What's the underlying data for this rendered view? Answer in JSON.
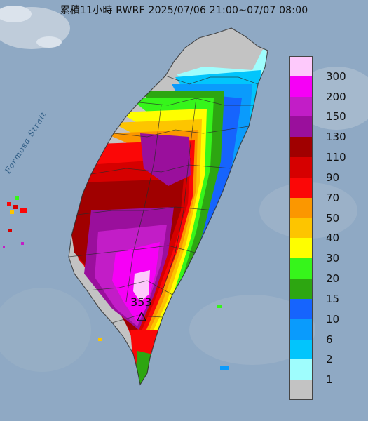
{
  "title": "累積11小時 RWRF 2025/07/06 21:00~07/07 08:00",
  "strait_label": "Formosa Strait",
  "peak": {
    "value": "353",
    "icon": "triangle-marker-icon"
  },
  "legend": [
    {
      "label": "300",
      "color": "#fdc9fb"
    },
    {
      "label": "200",
      "color": "#f600f6"
    },
    {
      "label": "150",
      "color": "#c21dc7"
    },
    {
      "label": "130",
      "color": "#9a0f9c"
    },
    {
      "label": "110",
      "color": "#a00000"
    },
    {
      "label": "90",
      "color": "#d60000"
    },
    {
      "label": "70",
      "color": "#fb0707"
    },
    {
      "label": "50",
      "color": "#fb9700"
    },
    {
      "label": "40",
      "color": "#fdc500"
    },
    {
      "label": "30",
      "color": "#fefe00"
    },
    {
      "label": "20",
      "color": "#36f51b"
    },
    {
      "label": "15",
      "color": "#2da611"
    },
    {
      "label": "10",
      "color": "#1664fd"
    },
    {
      "label": "6",
      "color": "#0a9bfc"
    },
    {
      "label": "2",
      "color": "#02c5fc"
    },
    {
      "label": "1",
      "color": "#9ffdfd"
    },
    {
      "label": "",
      "color": "#c3c3c3"
    }
  ],
  "colors": {
    "sea": "#8fa9c4",
    "cloud": "#e9eef4",
    "boundary": "#2a2a2a"
  }
}
